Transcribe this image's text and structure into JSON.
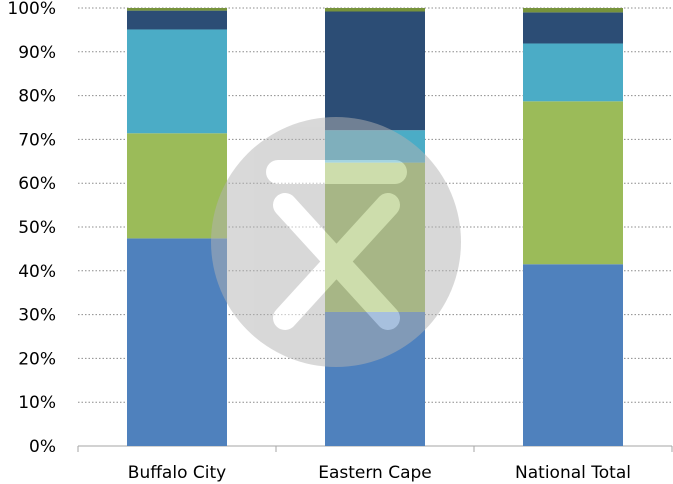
{
  "chart_data": {
    "type": "bar",
    "stacked": true,
    "percent": true,
    "categories": [
      "Buffalo City",
      "Eastern Cape",
      "National Total"
    ],
    "series": [
      {
        "color": "#4f81bd",
        "values": [
          47.4,
          30.6,
          41.5
        ]
      },
      {
        "color": "#9bbb59",
        "values": [
          24.0,
          34.1,
          37.2
        ]
      },
      {
        "color": "#4bacc6",
        "values": [
          23.7,
          7.4,
          13.2
        ]
      },
      {
        "color": "#2c4d75",
        "values": [
          4.3,
          27.1,
          7.1
        ]
      },
      {
        "color": "#77933c",
        "values": [
          0.6,
          0.8,
          1.0
        ]
      }
    ],
    "ylim": [
      0,
      100
    ],
    "yticks": [
      "0%",
      "10%",
      "20%",
      "30%",
      "40%",
      "50%",
      "60%",
      "70%",
      "80%",
      "90%",
      "100%"
    ],
    "grid": true,
    "legend": "none"
  }
}
